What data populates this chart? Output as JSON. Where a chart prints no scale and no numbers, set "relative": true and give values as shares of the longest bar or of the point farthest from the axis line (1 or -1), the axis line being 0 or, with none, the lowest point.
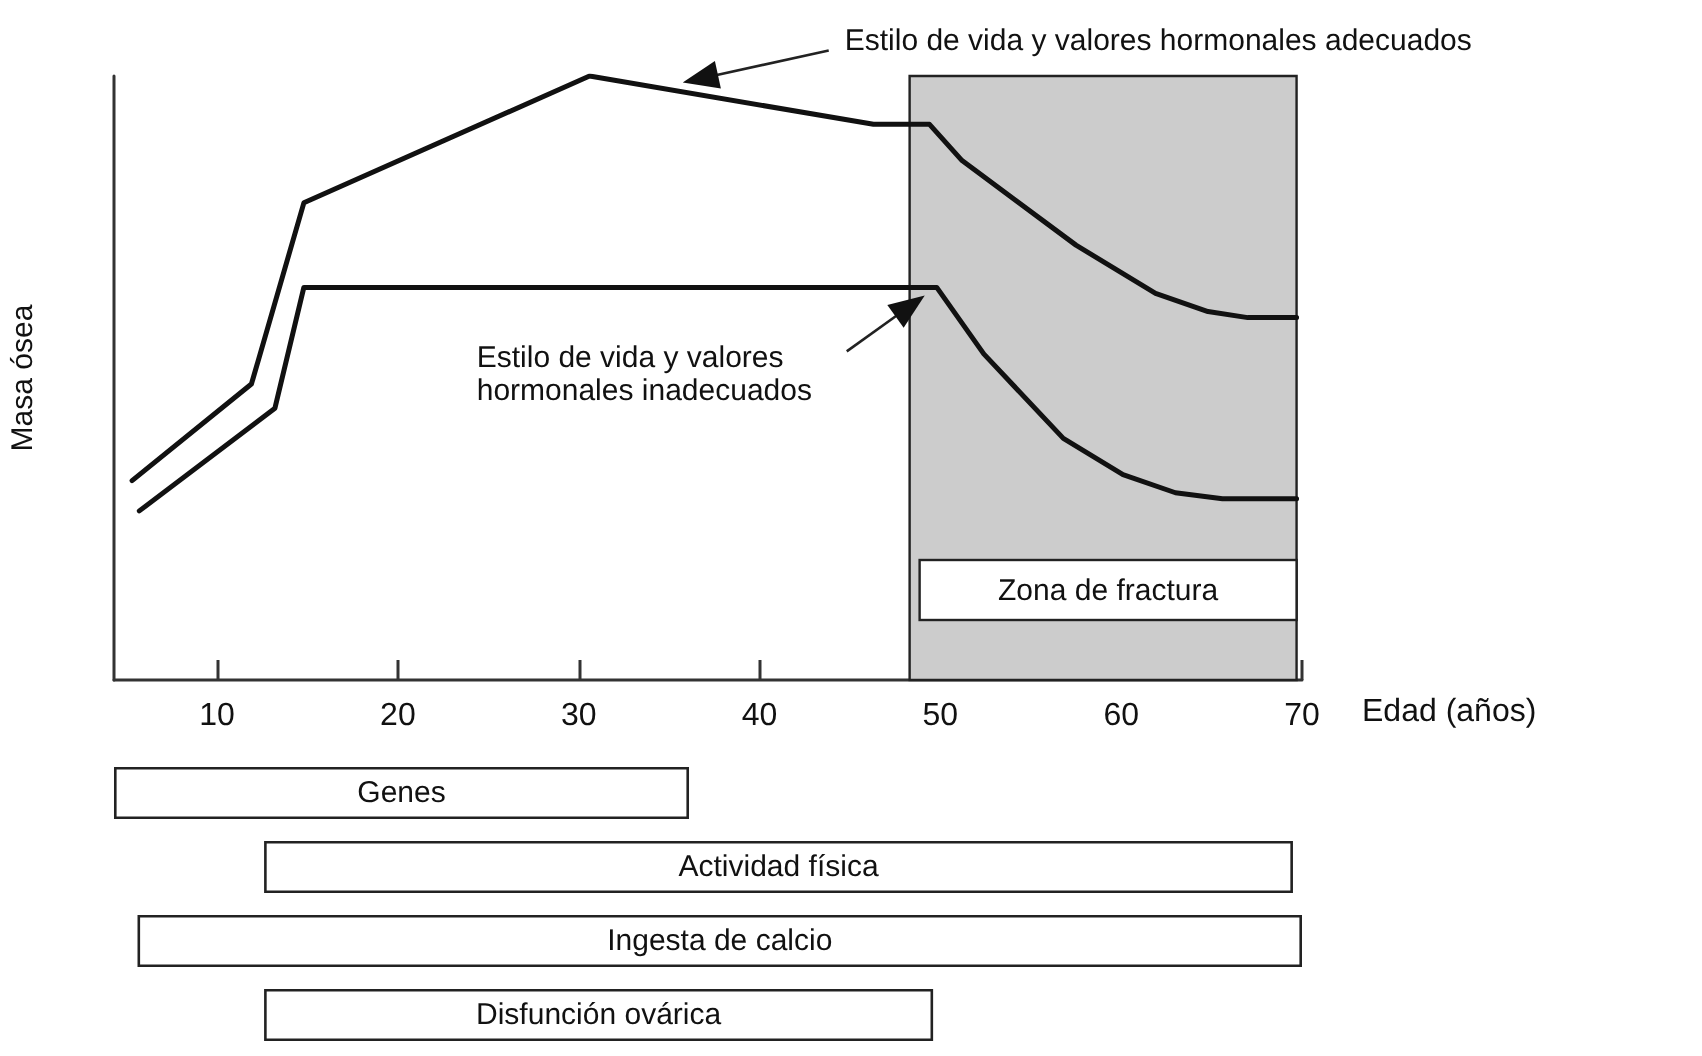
{
  "chart_data": [
    {
      "type": "line",
      "xlabel": "Edad (años)",
      "ylabel": "Masa ósea",
      "relative": true,
      "xlim": [
        4.3,
        70
      ],
      "xticks": [
        10,
        20,
        30,
        40,
        50,
        60,
        70
      ],
      "grid": false,
      "legend": false,
      "marker": "none",
      "line_style": "solid",
      "series": [
        {
          "name": "Estilo de vida y valores  hormonales adecuados",
          "color": "#111111",
          "x": [
            5.3,
            11.9,
            14.8,
            30.6,
            46.3,
            49.4,
            51.2,
            57.5,
            61.9,
            64.8,
            67,
            69.7
          ],
          "values": [
            0.33,
            0.49,
            0.79,
            1,
            0.92,
            0.92,
            0.86,
            0.72,
            0.64,
            0.61,
            0.6,
            0.6
          ]
        },
        {
          "name": "Estilo de vida y valores\nhormonales inadecuados",
          "color": "#111111",
          "x": [
            5.7,
            13.2,
            14.8,
            49.8,
            52.4,
            56.8,
            60.1,
            63,
            65.6,
            69.7
          ],
          "values": [
            0.28,
            0.45,
            0.65,
            0.65,
            0.54,
            0.4,
            0.34,
            0.31,
            0.3,
            0.3
          ]
        }
      ],
      "bands": [
        {
          "axis": "x",
          "from": 48.3,
          "to": 69.7,
          "label": "Zona de fractura",
          "color": "#cccccc"
        }
      ]
    },
    {
      "type": "bar",
      "orientation": "horizontal",
      "categories": [
        "Genes",
        "Actividad física",
        "Ingesta de calcio",
        "Disfunción ovárica"
      ],
      "base": [
        4.3,
        12.6,
        5.6,
        12.6
      ],
      "values": [
        31.8,
        56.9,
        64.4,
        37.0
      ],
      "color": "#ffffff",
      "xlim": [
        4.3,
        70
      ],
      "xticks": [
        10,
        20,
        30,
        40,
        50,
        60,
        70
      ],
      "tick_labels": false
    }
  ]
}
